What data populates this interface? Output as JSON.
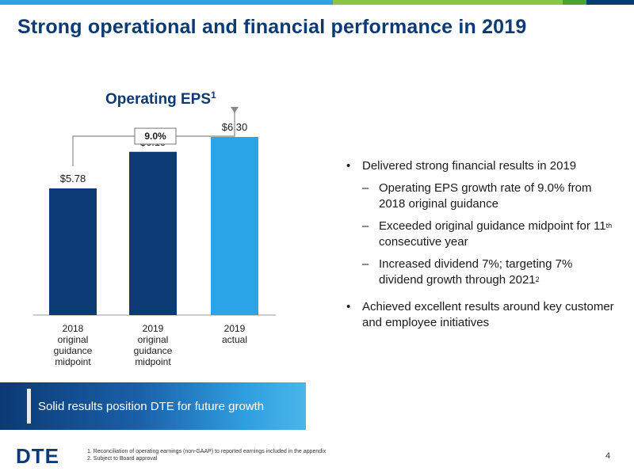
{
  "colors": {
    "brand_blue": "#0b3a75",
    "bar_dark": "#0b3a75",
    "bar_light": "#2ba4e8",
    "topbar": [
      "#2ba4e8",
      "#8cc63f",
      "#4aa52d",
      "#0b3a75"
    ]
  },
  "title": "Strong operational and financial performance in 2019",
  "chart_data": {
    "type": "bar",
    "title": "Operating EPS",
    "title_sup": "1",
    "categories": [
      [
        "2018",
        "original",
        "guidance",
        "midpoint"
      ],
      [
        "2019",
        "original",
        "guidance",
        "midpoint"
      ],
      [
        "2019",
        "actual"
      ]
    ],
    "values": [
      5.78,
      6.15,
      6.3
    ],
    "data_labels": [
      "$5.78",
      "$6.15",
      "$6.30"
    ],
    "bar_colors": [
      "#0b3a75",
      "#0b3a75",
      "#2ba4e8"
    ],
    "annotation": {
      "label": "9.0%",
      "from_index": 0,
      "to_index": 2
    },
    "ylim": [
      4.5,
      6.5
    ],
    "grid": false,
    "xlabel": "",
    "ylabel": ""
  },
  "bullets": [
    {
      "level": 1,
      "text": "Delivered strong financial results in 2019"
    },
    {
      "level": 2,
      "text": "Operating EPS growth rate of 9.0% from 2018 original guidance"
    },
    {
      "level": 2,
      "text_before": "Exceeded original guidance midpoint for 11",
      "sup": "th",
      "text_after": " consecutive year"
    },
    {
      "level": 2,
      "text_before": "Increased dividend 7%; targeting 7% dividend growth through 2021",
      "sup": "2",
      "text_after": ""
    },
    {
      "level": 1,
      "text": "Achieved excellent results around key customer and employee initiatives"
    }
  ],
  "banner": {
    "text": "Solid results position DTE for future growth"
  },
  "footer": {
    "logo": "DTE",
    "footnotes": [
      "1. Reconciliation of operating earnings (non-GAAP) to reported earnings included in the appendix",
      "2. Subject to Board approval"
    ],
    "page_number": "4"
  }
}
